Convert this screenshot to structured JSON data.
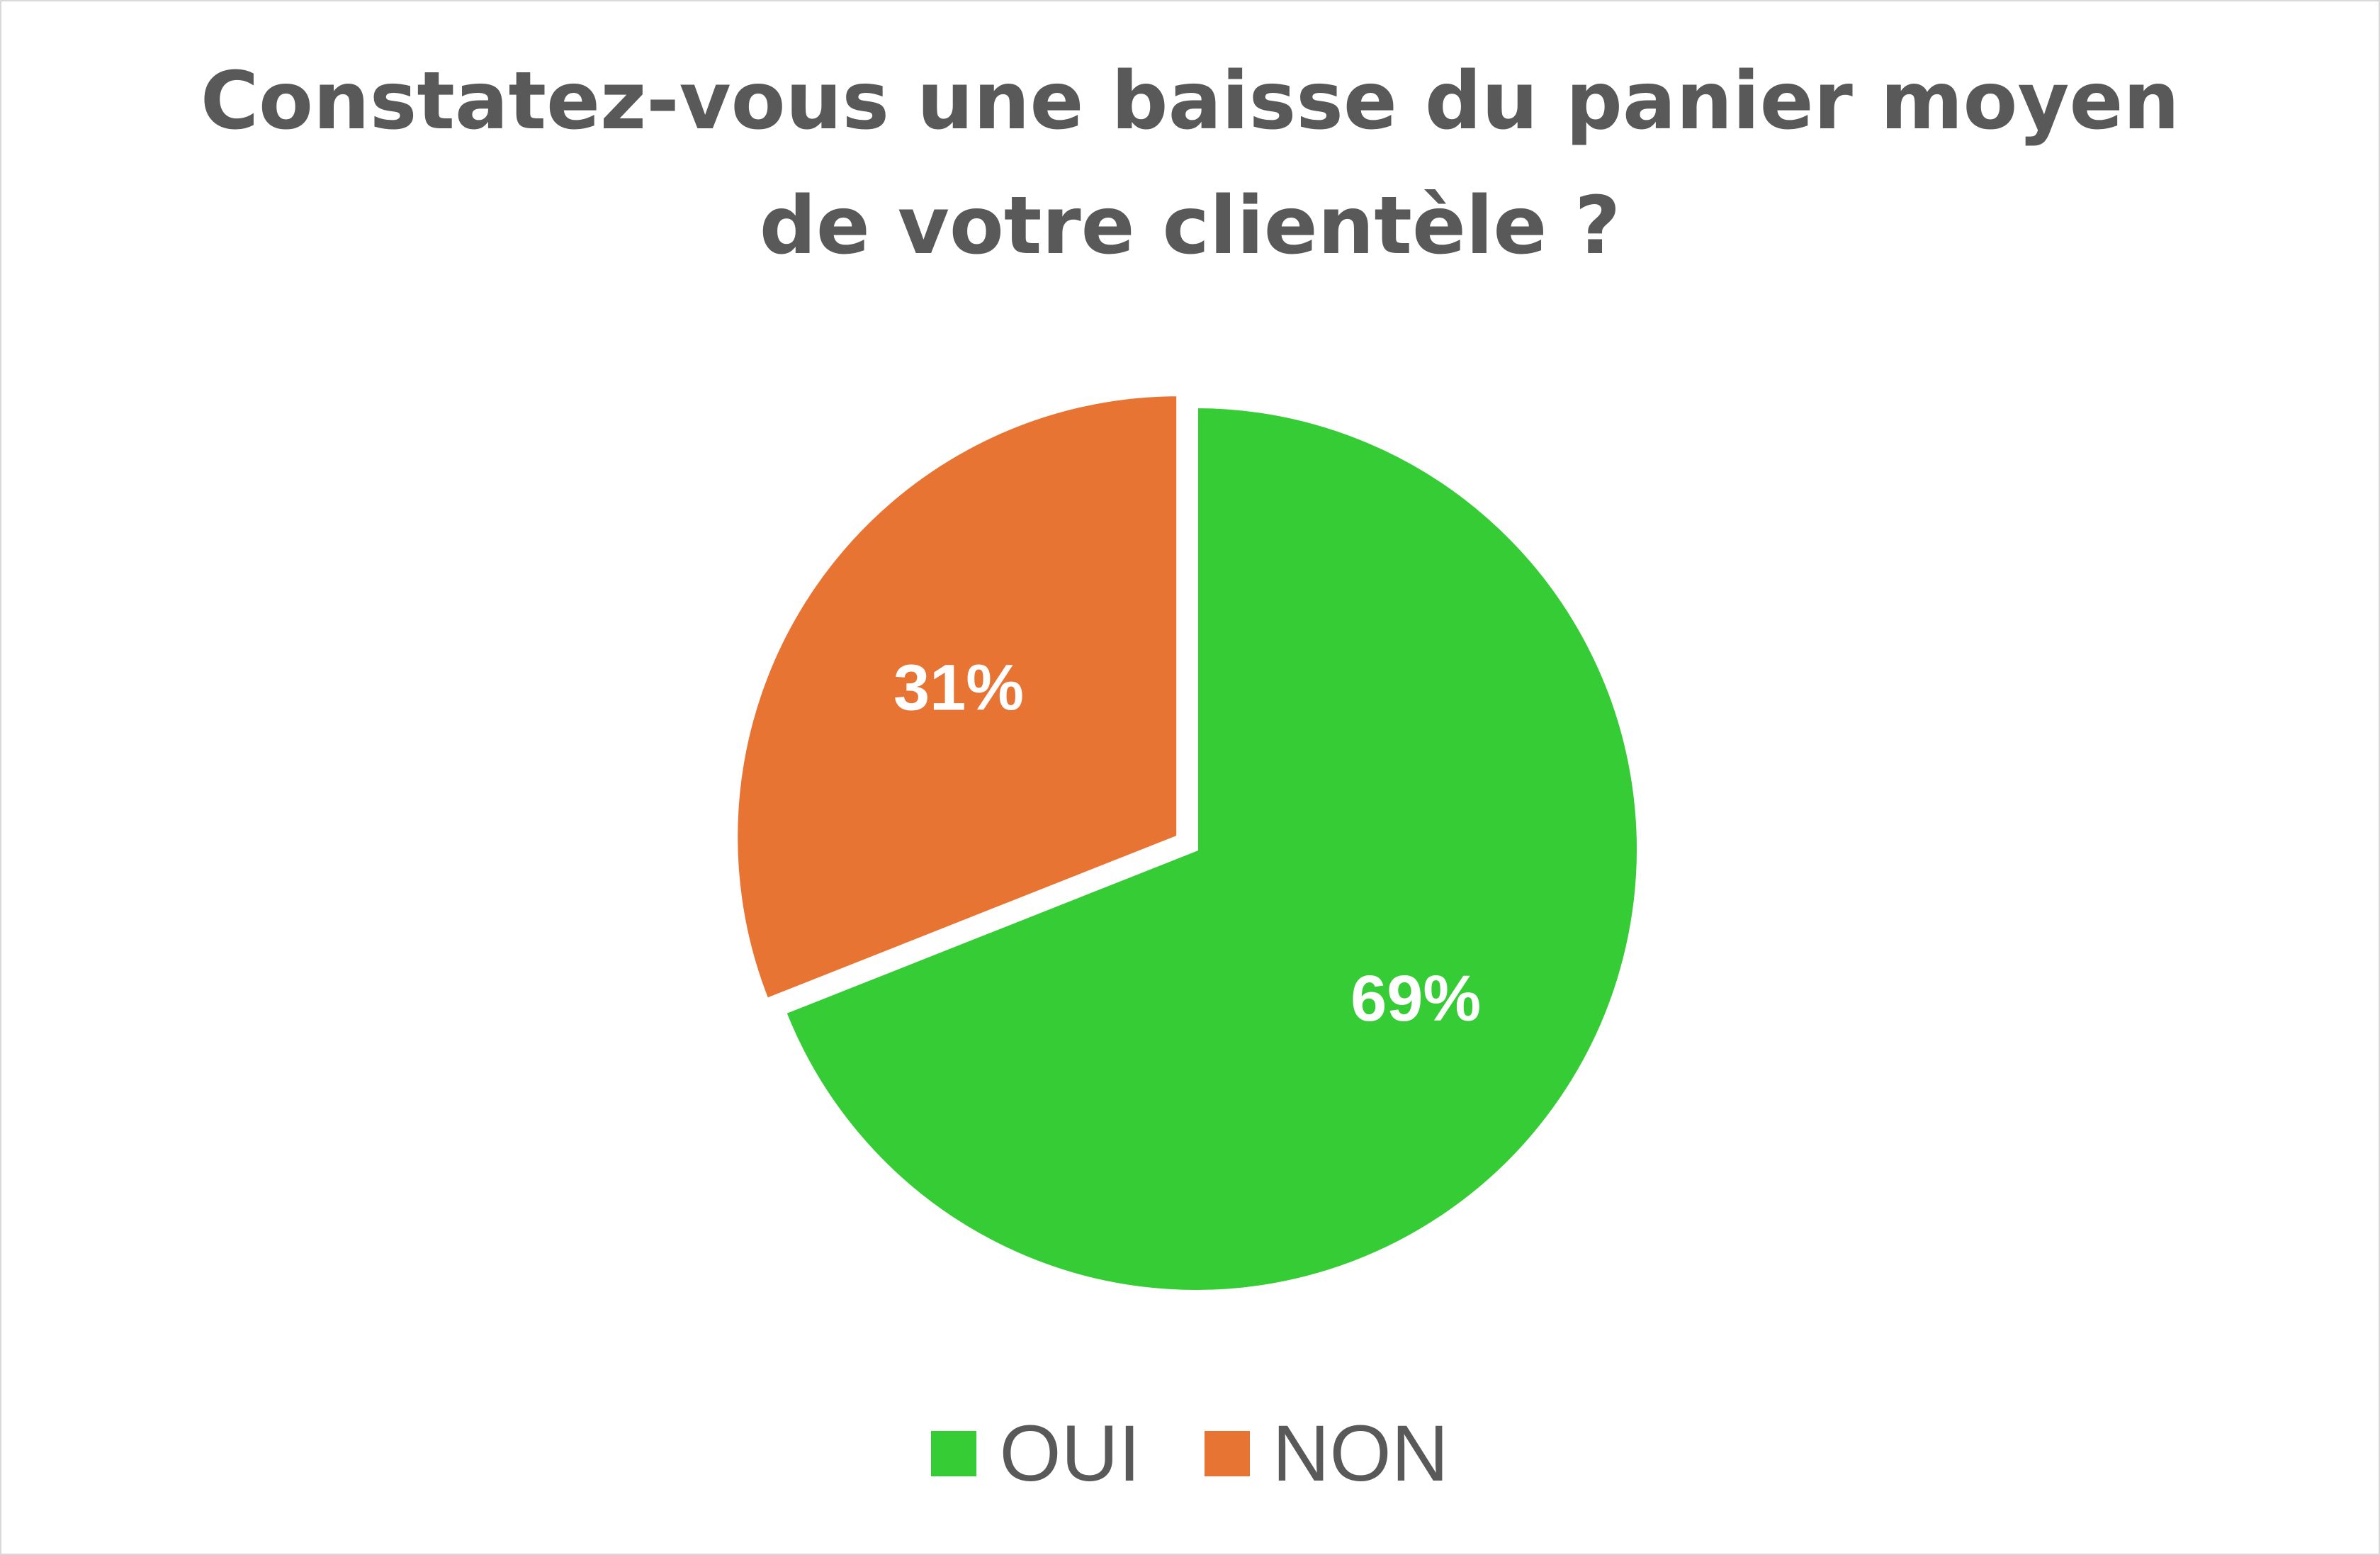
{
  "chart_data": {
    "type": "pie",
    "title": "Constatez-vous une baisse du panier moyen de votre clientèle ?",
    "title_lines": [
      "Constatez-vous une baisse du panier moyen",
      "de votre clientèle ?"
    ],
    "categories": [
      "OUI",
      "NON"
    ],
    "values": [
      69,
      31
    ],
    "data_labels": [
      "69%",
      "31%"
    ],
    "colors": [
      "#36CC36",
      "#E87434"
    ],
    "exploded_slice": "NON",
    "legend_position": "bottom",
    "label_color": "#FFFFFF"
  }
}
